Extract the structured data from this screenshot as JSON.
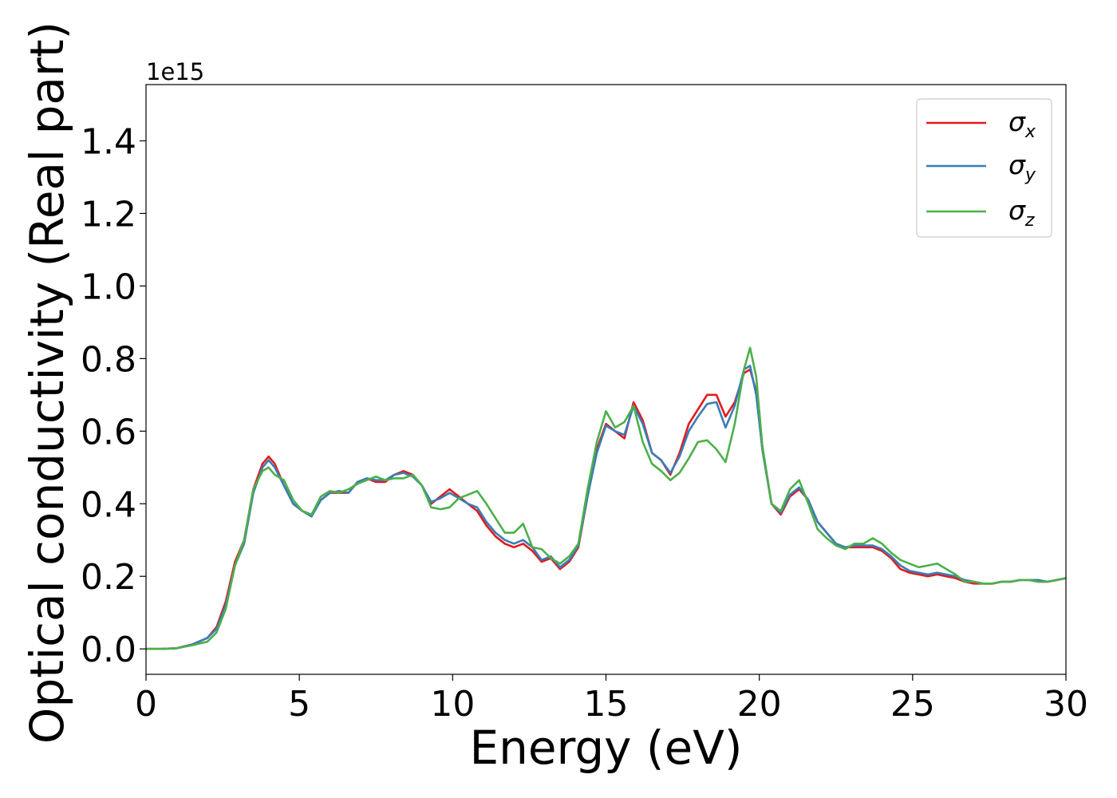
{
  "chart_data": {
    "type": "line",
    "title": "",
    "xlabel": "Energy (eV)",
    "ylabel": "Optical conductivity (Real part)",
    "y_offset_label": "1e15",
    "xlim": [
      0,
      30
    ],
    "ylim": [
      -0.07,
      1.555
    ],
    "xticks": [
      0,
      5,
      10,
      15,
      20,
      25,
      30
    ],
    "xtick_labels": [
      "0",
      "5",
      "10",
      "15",
      "20",
      "25",
      "30"
    ],
    "yticks": [
      0.0,
      0.2,
      0.4,
      0.6,
      0.8,
      1.0,
      1.2,
      1.4
    ],
    "ytick_labels": [
      "0.0",
      "0.2",
      "0.4",
      "0.6",
      "0.8",
      "1.0",
      "1.2",
      "1.4"
    ],
    "grid": false,
    "legend_position": "top-right",
    "series": [
      {
        "name": "σ_x",
        "label_main": "σ",
        "label_sub": "x",
        "color": "#e41a1c",
        "x": [
          0,
          0.5,
          1,
          1.5,
          2,
          2.3,
          2.6,
          2.9,
          3.2,
          3.5,
          3.8,
          4,
          4.2,
          4.5,
          4.8,
          5.1,
          5.4,
          5.7,
          6,
          6.3,
          6.6,
          6.9,
          7.2,
          7.5,
          7.8,
          8.1,
          8.4,
          8.7,
          9,
          9.3,
          9.6,
          9.9,
          10.2,
          10.5,
          10.8,
          11.1,
          11.4,
          11.7,
          12,
          12.3,
          12.6,
          12.9,
          13.2,
          13.5,
          13.8,
          14.1,
          14.4,
          14.7,
          15,
          15.3,
          15.6,
          15.9,
          16.2,
          16.5,
          16.8,
          17.1,
          17.4,
          17.7,
          18,
          18.3,
          18.6,
          18.9,
          19.2,
          19.5,
          19.7,
          19.9,
          20.1,
          20.4,
          20.7,
          21,
          21.3,
          21.6,
          21.9,
          22.2,
          22.5,
          22.8,
          23.1,
          23.4,
          23.7,
          24,
          24.3,
          24.6,
          24.9,
          25.2,
          25.5,
          25.8,
          26.1,
          26.4,
          26.7,
          27,
          27.3,
          27.6,
          27.9,
          28.2,
          28.5,
          28.8,
          29.1,
          29.4,
          29.7,
          30
        ],
        "values": [
          0,
          0,
          0.002,
          0.012,
          0.03,
          0.06,
          0.13,
          0.24,
          0.3,
          0.44,
          0.51,
          0.53,
          0.51,
          0.45,
          0.4,
          0.38,
          0.37,
          0.41,
          0.43,
          0.43,
          0.43,
          0.46,
          0.47,
          0.46,
          0.46,
          0.48,
          0.49,
          0.48,
          0.45,
          0.4,
          0.42,
          0.44,
          0.42,
          0.4,
          0.38,
          0.34,
          0.31,
          0.29,
          0.28,
          0.29,
          0.27,
          0.24,
          0.25,
          0.22,
          0.24,
          0.28,
          0.42,
          0.55,
          0.62,
          0.6,
          0.58,
          0.68,
          0.63,
          0.54,
          0.52,
          0.48,
          0.54,
          0.62,
          0.66,
          0.7,
          0.7,
          0.64,
          0.68,
          0.76,
          0.77,
          0.71,
          0.55,
          0.4,
          0.37,
          0.42,
          0.44,
          0.41,
          0.35,
          0.32,
          0.29,
          0.28,
          0.28,
          0.28,
          0.28,
          0.27,
          0.25,
          0.22,
          0.21,
          0.205,
          0.2,
          0.205,
          0.2,
          0.195,
          0.185,
          0.18,
          0.18,
          0.18,
          0.185,
          0.185,
          0.19,
          0.19,
          0.185,
          0.185,
          0.19,
          0.195
        ]
      },
      {
        "name": "σ_y",
        "label_main": "σ",
        "label_sub": "y",
        "color": "#377eb8",
        "x": [
          0,
          0.5,
          1,
          1.5,
          2,
          2.3,
          2.6,
          2.9,
          3.2,
          3.5,
          3.8,
          4,
          4.2,
          4.5,
          4.8,
          5.1,
          5.4,
          5.7,
          6,
          6.3,
          6.6,
          6.9,
          7.2,
          7.5,
          7.8,
          8.1,
          8.4,
          8.7,
          9,
          9.3,
          9.6,
          9.9,
          10.2,
          10.5,
          10.8,
          11.1,
          11.4,
          11.7,
          12,
          12.3,
          12.6,
          12.9,
          13.2,
          13.5,
          13.8,
          14.1,
          14.4,
          14.7,
          15,
          15.3,
          15.6,
          15.9,
          16.2,
          16.5,
          16.8,
          17.1,
          17.4,
          17.7,
          18,
          18.3,
          18.6,
          18.9,
          19.2,
          19.5,
          19.7,
          19.9,
          20.1,
          20.4,
          20.7,
          21,
          21.3,
          21.6,
          21.9,
          22.2,
          22.5,
          22.8,
          23.1,
          23.4,
          23.7,
          24,
          24.3,
          24.6,
          24.9,
          25.2,
          25.5,
          25.8,
          26.1,
          26.4,
          26.7,
          27,
          27.3,
          27.6,
          27.9,
          28.2,
          28.5,
          28.8,
          29.1,
          29.4,
          29.7,
          30
        ],
        "values": [
          0,
          0,
          0.002,
          0.012,
          0.03,
          0.055,
          0.12,
          0.23,
          0.29,
          0.43,
          0.5,
          0.52,
          0.5,
          0.45,
          0.4,
          0.38,
          0.365,
          0.41,
          0.43,
          0.435,
          0.43,
          0.46,
          0.47,
          0.465,
          0.465,
          0.48,
          0.485,
          0.475,
          0.45,
          0.405,
          0.415,
          0.43,
          0.415,
          0.4,
          0.39,
          0.35,
          0.32,
          0.3,
          0.29,
          0.3,
          0.28,
          0.245,
          0.255,
          0.225,
          0.245,
          0.285,
          0.42,
          0.54,
          0.615,
          0.6,
          0.59,
          0.67,
          0.62,
          0.54,
          0.52,
          0.485,
          0.53,
          0.6,
          0.64,
          0.675,
          0.68,
          0.61,
          0.67,
          0.77,
          0.78,
          0.7,
          0.55,
          0.4,
          0.375,
          0.425,
          0.445,
          0.41,
          0.35,
          0.32,
          0.29,
          0.28,
          0.285,
          0.285,
          0.285,
          0.275,
          0.255,
          0.23,
          0.215,
          0.21,
          0.205,
          0.21,
          0.205,
          0.2,
          0.19,
          0.185,
          0.18,
          0.18,
          0.185,
          0.185,
          0.19,
          0.19,
          0.19,
          0.185,
          0.19,
          0.195
        ]
      },
      {
        "name": "σ_z",
        "label_main": "σ",
        "label_sub": "z",
        "color": "#4daf4a",
        "x": [
          0,
          0.5,
          1,
          1.5,
          2,
          2.3,
          2.6,
          2.9,
          3.2,
          3.5,
          3.8,
          4,
          4.2,
          4.5,
          4.8,
          5.1,
          5.4,
          5.7,
          6,
          6.3,
          6.6,
          6.9,
          7.2,
          7.5,
          7.8,
          8.1,
          8.4,
          8.7,
          9,
          9.3,
          9.6,
          9.9,
          10.2,
          10.5,
          10.8,
          11.1,
          11.4,
          11.7,
          12,
          12.3,
          12.6,
          12.9,
          13.2,
          13.5,
          13.8,
          14.1,
          14.4,
          14.7,
          15,
          15.3,
          15.6,
          15.9,
          16.2,
          16.5,
          16.8,
          17.1,
          17.4,
          17.7,
          18,
          18.3,
          18.6,
          18.9,
          19.2,
          19.5,
          19.7,
          19.9,
          20.1,
          20.4,
          20.7,
          21,
          21.3,
          21.6,
          21.9,
          22.2,
          22.5,
          22.8,
          23.1,
          23.4,
          23.7,
          24,
          24.3,
          24.6,
          24.9,
          25.2,
          25.5,
          25.8,
          26.1,
          26.4,
          26.7,
          27,
          27.3,
          27.6,
          27.9,
          28.2,
          28.5,
          28.8,
          29.1,
          29.4,
          29.7,
          30
        ],
        "values": [
          0,
          0,
          0.002,
          0.01,
          0.02,
          0.045,
          0.11,
          0.23,
          0.3,
          0.44,
          0.49,
          0.5,
          0.48,
          0.465,
          0.41,
          0.38,
          0.37,
          0.42,
          0.435,
          0.43,
          0.44,
          0.455,
          0.465,
          0.475,
          0.465,
          0.47,
          0.47,
          0.48,
          0.45,
          0.39,
          0.385,
          0.39,
          0.415,
          0.425,
          0.435,
          0.4,
          0.36,
          0.32,
          0.32,
          0.345,
          0.28,
          0.275,
          0.25,
          0.235,
          0.255,
          0.29,
          0.44,
          0.57,
          0.655,
          0.61,
          0.625,
          0.67,
          0.57,
          0.51,
          0.49,
          0.465,
          0.485,
          0.525,
          0.57,
          0.575,
          0.55,
          0.515,
          0.62,
          0.77,
          0.83,
          0.75,
          0.56,
          0.4,
          0.38,
          0.44,
          0.465,
          0.4,
          0.33,
          0.305,
          0.285,
          0.275,
          0.29,
          0.29,
          0.305,
          0.29,
          0.265,
          0.245,
          0.235,
          0.225,
          0.23,
          0.235,
          0.22,
          0.205,
          0.185,
          0.185,
          0.18,
          0.18,
          0.185,
          0.185,
          0.19,
          0.19,
          0.185,
          0.185,
          0.19,
          0.195
        ]
      }
    ]
  }
}
